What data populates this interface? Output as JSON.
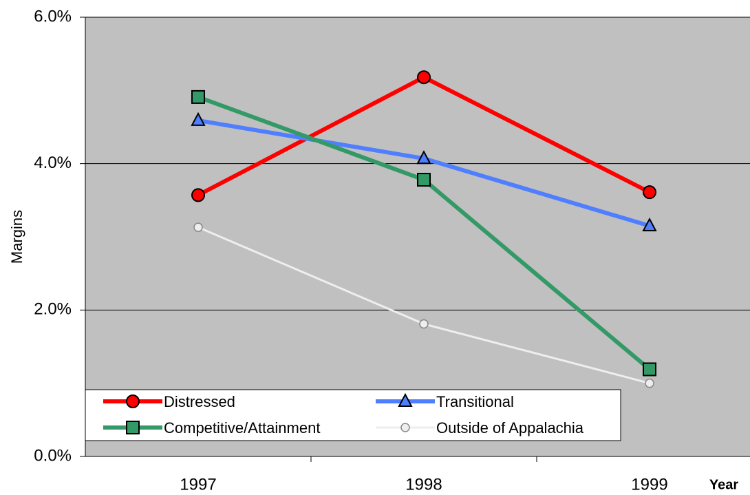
{
  "chart_data": {
    "type": "line",
    "x_label": "Year",
    "y_label": "Margins",
    "categories": [
      "1997",
      "1998",
      "1999"
    ],
    "series": [
      {
        "name": "Distressed",
        "color": "#ff0000",
        "marker": "circle",
        "values": [
          3.57,
          5.18,
          3.61
        ]
      },
      {
        "name": "Transitional",
        "color": "#4f7fff",
        "marker": "triangle",
        "values": [
          4.59,
          4.07,
          3.15
        ]
      },
      {
        "name": "Competitive/Attainment",
        "color": "#339966",
        "marker": "square",
        "values": [
          4.91,
          3.78,
          1.19
        ]
      },
      {
        "name": "Outside of Appalachia",
        "color": "#eeeeee",
        "marker": "small-circle",
        "values": [
          3.13,
          1.81,
          1.0
        ]
      }
    ],
    "ylim": [
      0,
      6
    ],
    "yticks": [
      {
        "value": 0,
        "label": "0.0%"
      },
      {
        "value": 2,
        "label": "2.0%"
      },
      {
        "value": 4,
        "label": "4.0%"
      },
      {
        "value": 6,
        "label": "6.0%"
      }
    ],
    "grid": true
  }
}
